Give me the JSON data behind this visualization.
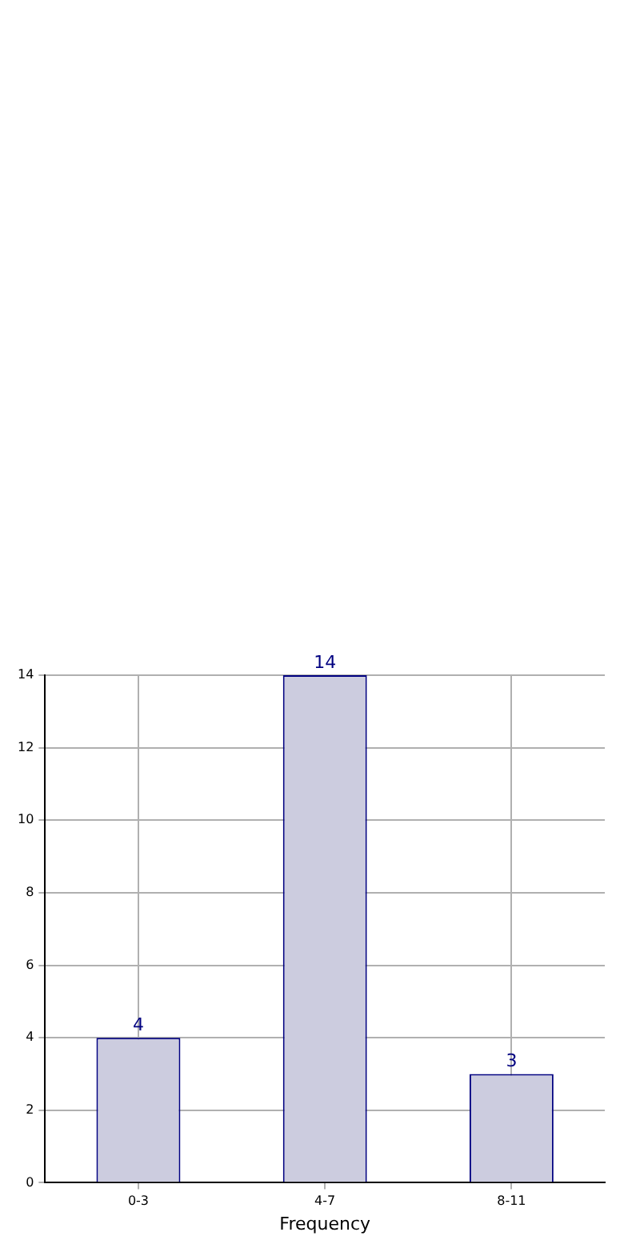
{
  "chart_data": {
    "type": "bar",
    "xlabel": "Frequency",
    "categories": [
      "0-3",
      "4-7",
      "8-11"
    ],
    "values": [
      4,
      14,
      3
    ],
    "color": "#ccccdf",
    "ylim": [
      0,
      14
    ],
    "yticks": [
      0,
      2,
      4,
      6,
      8,
      10,
      12,
      14
    ],
    "grid": true,
    "data_labels": true
  }
}
